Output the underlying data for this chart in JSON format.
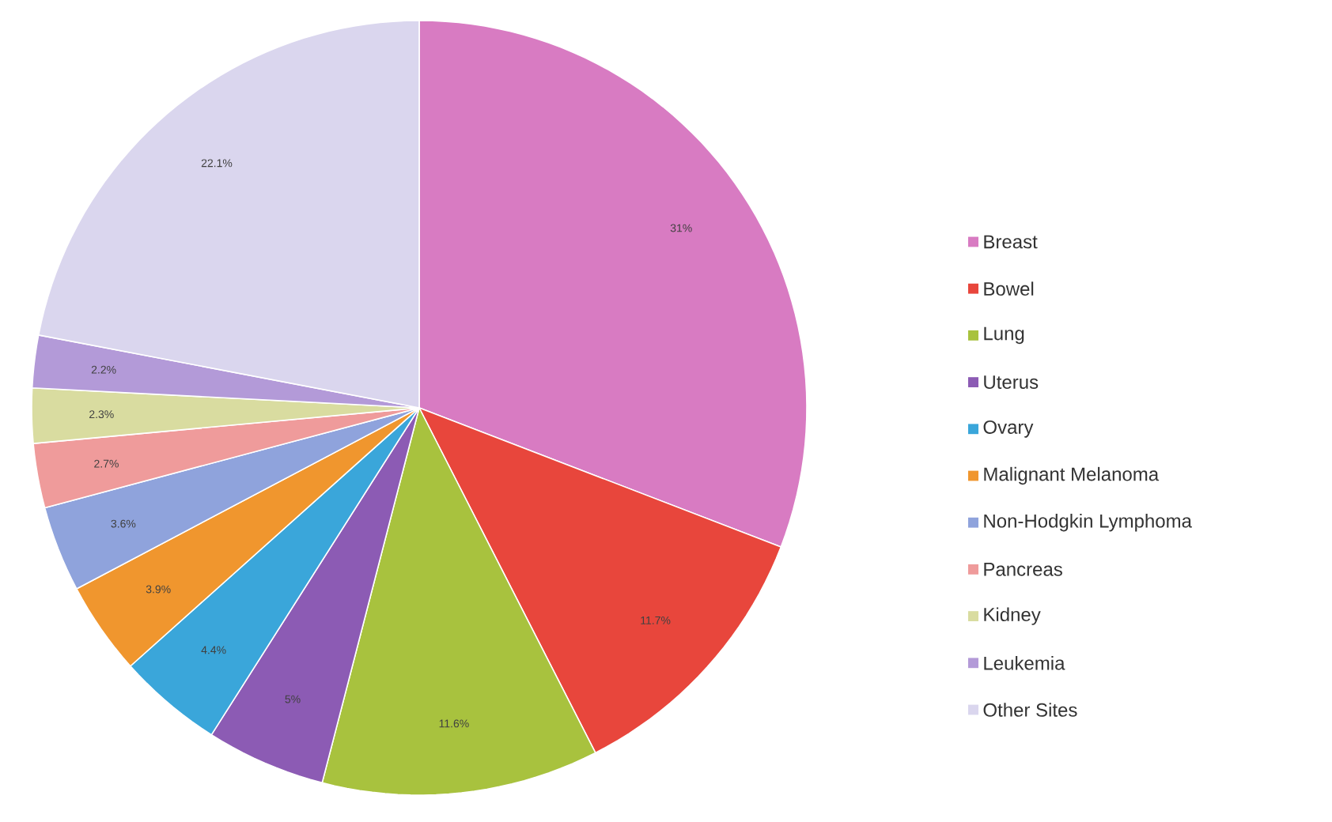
{
  "chart_data": {
    "type": "pie",
    "categories": [
      "Breast",
      "Bowel",
      "Lung",
      "Uterus",
      "Ovary",
      "Malignant Melanoma",
      "Non-Hodgkin Lymphoma",
      "Pancreas",
      "Kidney",
      "Leukemia",
      "Other Sites"
    ],
    "values": [
      31,
      11.7,
      11.6,
      5,
      4.4,
      3.9,
      3.6,
      2.7,
      2.3,
      2.2,
      22.1
    ],
    "value_labels": [
      "31%",
      "11.7%",
      "11.6%",
      "5%",
      "4.4%",
      "3.9%",
      "3.6%",
      "2.7%",
      "2.3%",
      "2.2%",
      "22.1%"
    ],
    "colors": [
      "#d87bc2",
      "#e8463c",
      "#a8c23e",
      "#8c5bb4",
      "#3aa6da",
      "#f0962e",
      "#8fa3dc",
      "#ef9b9b",
      "#d9dca0",
      "#b39ad8",
      "#dad6ee"
    ],
    "legend": "right"
  }
}
